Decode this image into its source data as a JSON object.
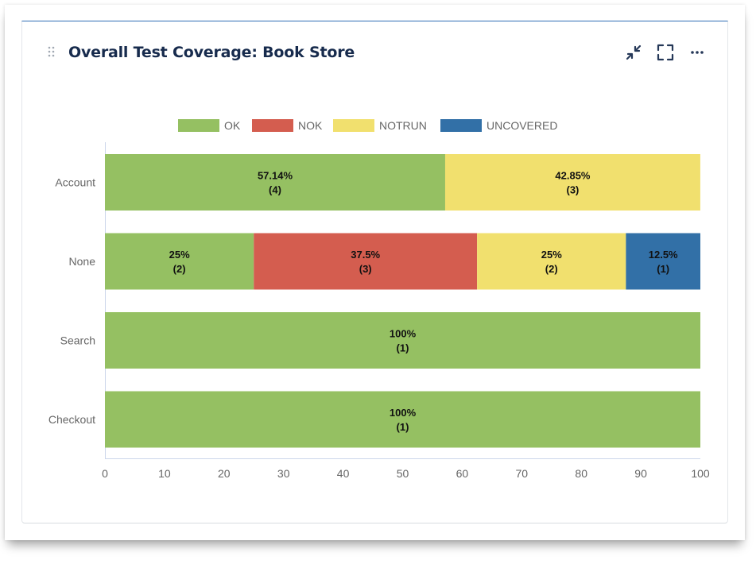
{
  "widget": {
    "title": "Overall Test Coverage: Book Store",
    "icons": [
      "drag-handle-icon",
      "collapse-icon",
      "fullscreen-icon",
      "more-options-icon"
    ]
  },
  "colors": {
    "OK": "#95c062",
    "NOK": "#d45d4f",
    "NOTRUN": "#f1e06e",
    "UNCOVERED": "#3270a7",
    "card_border_top": "#2f6db5"
  },
  "chart_data": {
    "type": "bar",
    "orientation": "horizontal",
    "stacked": true,
    "categories": [
      "Account",
      "None",
      "Search",
      "Checkout"
    ],
    "series": [
      {
        "name": "OK",
        "values": [
          57.14,
          25,
          100,
          100
        ],
        "counts": [
          4,
          2,
          1,
          1
        ]
      },
      {
        "name": "NOK",
        "values": [
          0,
          37.5,
          0,
          0
        ],
        "counts": [
          0,
          3,
          0,
          0
        ]
      },
      {
        "name": "NOTRUN",
        "values": [
          42.85,
          25,
          0,
          0
        ],
        "counts": [
          3,
          2,
          0,
          0
        ]
      },
      {
        "name": "UNCOVERED",
        "values": [
          0,
          12.5,
          0,
          0
        ],
        "counts": [
          0,
          1,
          0,
          0
        ]
      }
    ],
    "data_labels": [
      [
        [
          "57.14%",
          "(4)"
        ],
        null,
        [
          "42.85%",
          "(3)"
        ],
        null
      ],
      [
        [
          "25%",
          "(2)"
        ],
        [
          "37.5%",
          "(3)"
        ],
        [
          "25%",
          "(2)"
        ],
        [
          "12.5%",
          "(1)"
        ]
      ],
      [
        [
          "100%",
          "(1)"
        ],
        null,
        null,
        null
      ],
      [
        [
          "100%",
          "(1)"
        ],
        null,
        null,
        null
      ]
    ],
    "xlim": [
      0,
      100
    ],
    "xticks": [
      "0",
      "10",
      "20",
      "30",
      "40",
      "50",
      "60",
      "70",
      "80",
      "90",
      "100"
    ],
    "legend_position": "top-center",
    "grid": false
  }
}
